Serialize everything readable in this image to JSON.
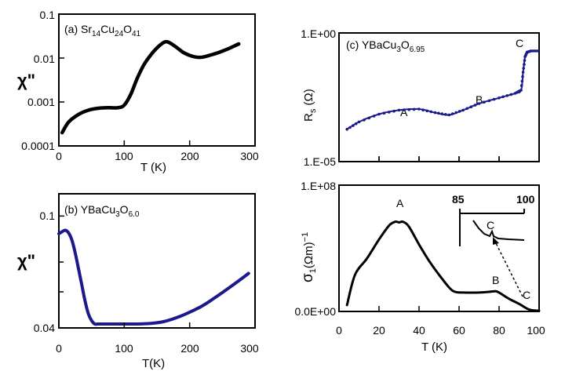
{
  "colors": {
    "black": "#000000",
    "blue": "#1a1a8c"
  },
  "chart_data": [
    {
      "id": "a",
      "type": "line",
      "title": "(a) Sr14Cu24O41",
      "title_parts": {
        "lead": "(a) Sr",
        "s1": "14",
        "m1": "Cu",
        "s2": "24",
        "m2": "O",
        "s3": "41"
      },
      "xlabel": "T (K)",
      "ylabel": "χ\"",
      "xscale": "linear",
      "yscale": "log",
      "xlim": [
        0,
        300
      ],
      "ylim": [
        0.0001,
        0.1
      ],
      "xticks": [
        0,
        100,
        200,
        300
      ],
      "xtick_labels": [
        "0",
        "100",
        "200",
        "300"
      ],
      "yticks": [
        0.0001,
        0.001,
        0.01,
        0.1
      ],
      "ytick_labels": [
        "0.0001",
        "0.001",
        "0.01",
        "0.1"
      ],
      "series": [
        {
          "name": "χ\"",
          "color": "#000000",
          "x": [
            5,
            15,
            30,
            45,
            60,
            75,
            90,
            100,
            110,
            120,
            130,
            140,
            150,
            160,
            165,
            170,
            180,
            190,
            200,
            210,
            220,
            230,
            245,
            260,
            275
          ],
          "y": [
            0.0002,
            0.00035,
            0.00052,
            0.00065,
            0.00072,
            0.00074,
            0.00074,
            0.00085,
            0.0015,
            0.0035,
            0.007,
            0.0115,
            0.017,
            0.0225,
            0.0235,
            0.022,
            0.0175,
            0.0135,
            0.0115,
            0.0105,
            0.0105,
            0.0115,
            0.0135,
            0.0165,
            0.021
          ]
        }
      ]
    },
    {
      "id": "b",
      "type": "line",
      "title": "(b) YBaCu3O6.0",
      "title_parts": {
        "lead": "(b) YBaCu",
        "s1": "3",
        "m1": "O",
        "s2": "6.0"
      },
      "xlabel": "T(K)",
      "ylabel": "χ\"",
      "xscale": "linear",
      "yscale": "log",
      "xlim": [
        0,
        300
      ],
      "ylim": [
        0.04,
        0.12
      ],
      "xticks": [
        0,
        100,
        200,
        300
      ],
      "xtick_labels": [
        "0",
        "100",
        "200",
        "300"
      ],
      "yticks": [
        0.04,
        0.1
      ],
      "ytick_labels": [
        "0.04",
        "0.1"
      ],
      "series": [
        {
          "name": "χ\"",
          "color": "#1a1a8c",
          "x": [
            0,
            5,
            10,
            15,
            20,
            25,
            30,
            35,
            40,
            45,
            50,
            55,
            60,
            80,
            100,
            120,
            140,
            160,
            180,
            200,
            220,
            240,
            260,
            280,
            290
          ],
          "y": [
            0.0865,
            0.088,
            0.089,
            0.087,
            0.082,
            0.074,
            0.065,
            0.057,
            0.05,
            0.045,
            0.0425,
            0.0413,
            0.0413,
            0.0413,
            0.0413,
            0.0413,
            0.0415,
            0.0421,
            0.0435,
            0.0455,
            0.048,
            0.0515,
            0.0555,
            0.06,
            0.0625
          ]
        }
      ]
    },
    {
      "id": "c",
      "type": "line",
      "title": "(c) YBaCu3O6.95",
      "title_parts": {
        "lead": "(c) YBaCu",
        "s1": "3",
        "m1": "O",
        "s2": "6.95"
      },
      "xlabel": "",
      "ylabel": "Rs (Ω)",
      "ylabel_parts": {
        "lead": "R",
        "sub": "s",
        "tail": " (Ω)"
      },
      "xscale": "linear",
      "yscale": "log",
      "xlim": [
        0,
        100
      ],
      "ylim": [
        1e-05,
        1
      ],
      "xticks": [
        0,
        20,
        40,
        60,
        80,
        100
      ],
      "yticks": [
        1e-05,
        1
      ],
      "ytick_labels": [
        "1.E-05",
        "1.E+00"
      ],
      "annotations": [
        "A",
        "B",
        "C"
      ],
      "series": [
        {
          "name": "Rs",
          "color": "#1a1a8c",
          "x": [
            4,
            10,
            20,
            30,
            40,
            48,
            55,
            62,
            70,
            80,
            88,
            91,
            92,
            93,
            94,
            96,
            100
          ],
          "y": [
            0.00018,
            0.00035,
            0.0007,
            0.001,
            0.0011,
            0.0008,
            0.00065,
            0.001,
            0.0018,
            0.003,
            0.0045,
            0.006,
            0.03,
            0.12,
            0.18,
            0.2,
            0.2
          ]
        }
      ]
    },
    {
      "id": "d",
      "type": "line",
      "title": "",
      "xlabel": "T (K)",
      "ylabel": "σ1(Ωm)−1",
      "ylabel_parts": {
        "lead": "σ",
        "sub": "1",
        "mid": "(Ωm)",
        "sup": "−1"
      },
      "xscale": "linear",
      "yscale": "linear",
      "xlim": [
        0,
        100
      ],
      "ylim": [
        0,
        100000000
      ],
      "xticks": [
        0,
        20,
        40,
        60,
        80,
        100
      ],
      "xtick_labels": [
        "0",
        "20",
        "40",
        "60",
        "80",
        "100"
      ],
      "yticks": [
        0,
        100000000
      ],
      "ytick_labels": [
        "0.0E+00",
        "1.E+08"
      ],
      "annotations": [
        "A",
        "B",
        "C"
      ],
      "series": [
        {
          "name": "σ1",
          "color": "#000000",
          "x": [
            4,
            8,
            14,
            20,
            25,
            28,
            30,
            32,
            35,
            40,
            45,
            50,
            55,
            58,
            62,
            70,
            75,
            78,
            80,
            85,
            90,
            95,
            100
          ],
          "y": [
            5000000,
            29000000,
            42000000,
            57000000,
            68000000,
            71000000,
            70500000,
            71000000,
            67000000,
            53000000,
            40000000,
            29000000,
            19000000,
            15500000,
            15000000,
            15000000,
            15500000,
            16000000,
            15000000,
            10000000,
            6000000,
            1500000,
            500000
          ]
        }
      ],
      "inset": {
        "xtick_labels": [
          "85",
          "100"
        ],
        "annotation": "C"
      }
    }
  ]
}
